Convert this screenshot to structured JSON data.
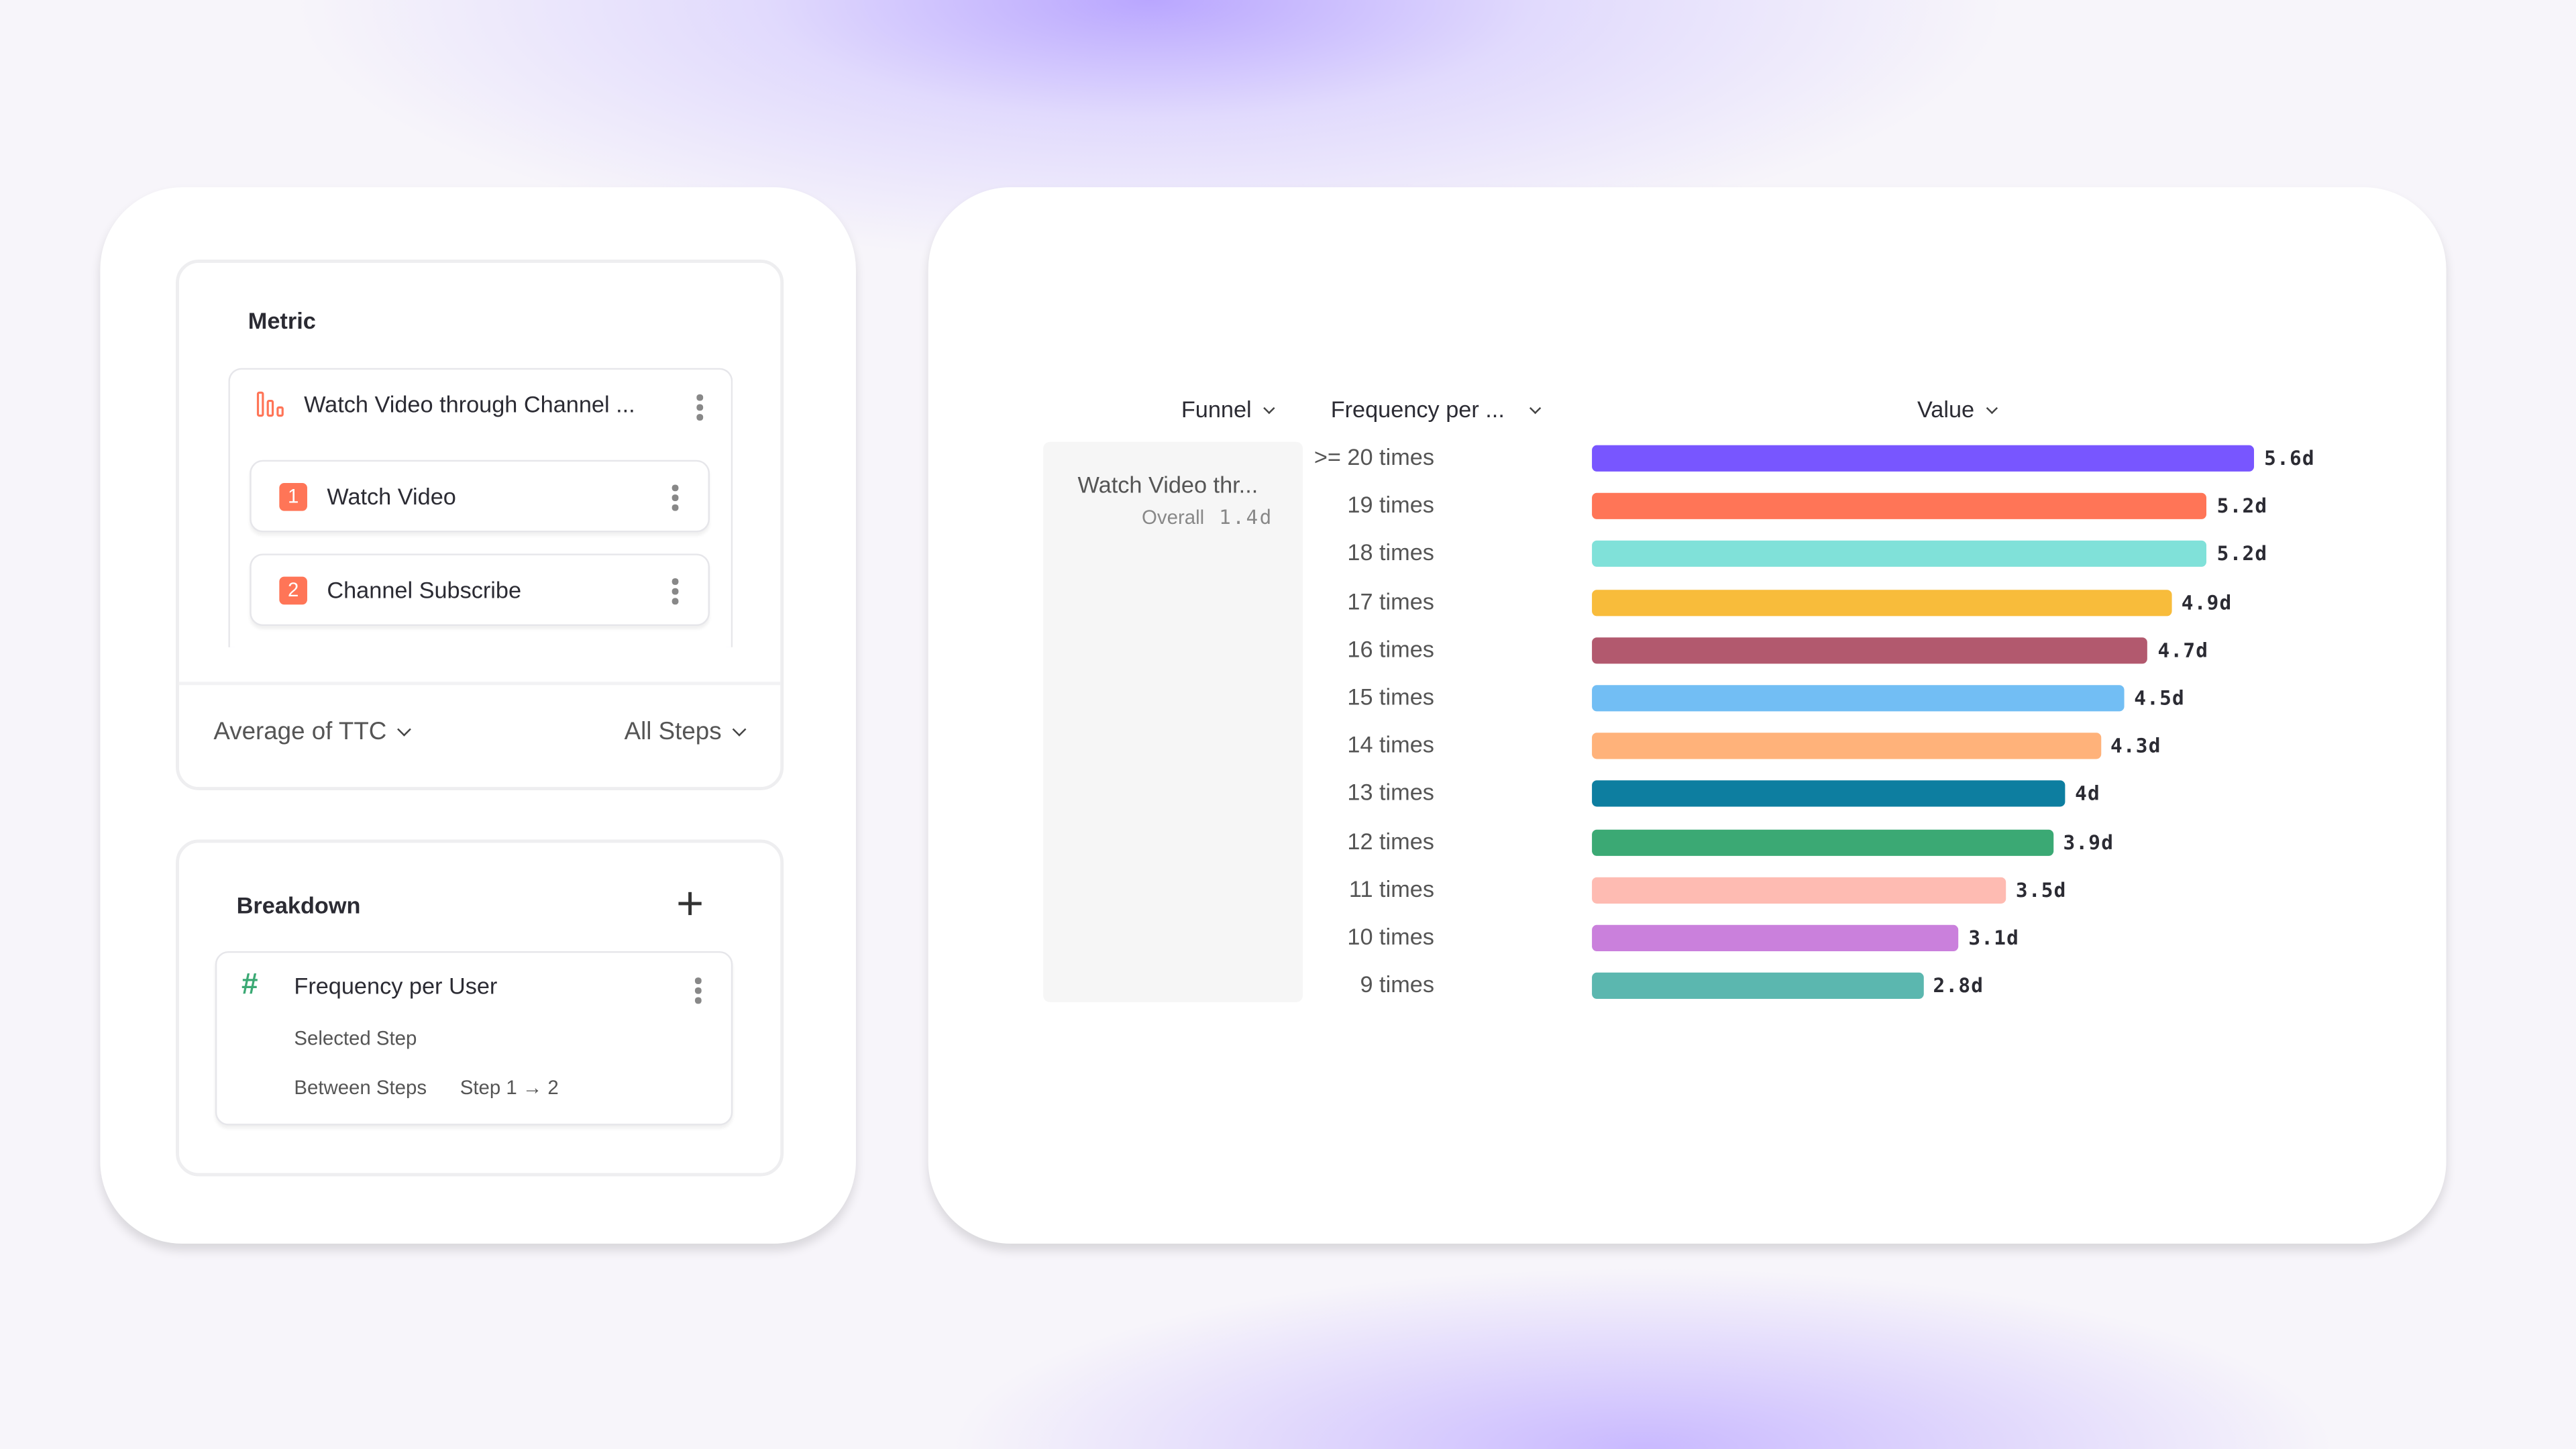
{
  "metric": {
    "title": "Metric",
    "funnel_name": "Watch Video through Channel ...",
    "funnel_icon": "funnel-bars-icon",
    "steps": [
      {
        "num": "1",
        "label": "Watch Video"
      },
      {
        "num": "2",
        "label": "Channel Subscribe"
      }
    ],
    "aggregation": "Average of TTC",
    "steps_filter": "All Steps"
  },
  "breakdown": {
    "title": "Breakdown",
    "property": "Frequency per User",
    "property_icon": "hash-number-icon",
    "selected_step_label": "Selected Step",
    "between_label": "Between Steps",
    "between_value": "Step 1 → 2"
  },
  "table": {
    "col_funnel": "Funnel",
    "col_frequency": "Frequency per ...",
    "col_value": "Value",
    "funnel_cell": "Watch Video thr...",
    "overall_label": "Overall",
    "overall_value": "1.4d"
  },
  "chart_data": {
    "type": "bar",
    "orientation": "horizontal",
    "unit": "days",
    "categories": [
      ">= 20 times",
      "19 times",
      "18 times",
      "17 times",
      "16 times",
      "15 times",
      "14 times",
      "13 times",
      "12 times",
      "11 times",
      "10 times",
      "9 times"
    ],
    "values": [
      5.6,
      5.2,
      5.2,
      4.9,
      4.7,
      4.5,
      4.3,
      4.0,
      3.9,
      3.5,
      3.1,
      2.8
    ],
    "labels": [
      "5.6d",
      "5.2d",
      "5.2d",
      "4.9d",
      "4.7d",
      "4.5d",
      "4.3d",
      "4d",
      "3.9d",
      "3.5d",
      "3.1d",
      "2.8d"
    ],
    "colors": [
      "#7856ff",
      "#ff7557",
      "#80e1d9",
      "#f8bc3b",
      "#b2596e",
      "#72bef4",
      "#ffb27a",
      "#0d7ea0",
      "#3ba974",
      "#febbb2",
      "#ca80dc",
      "#5bb7af"
    ]
  }
}
